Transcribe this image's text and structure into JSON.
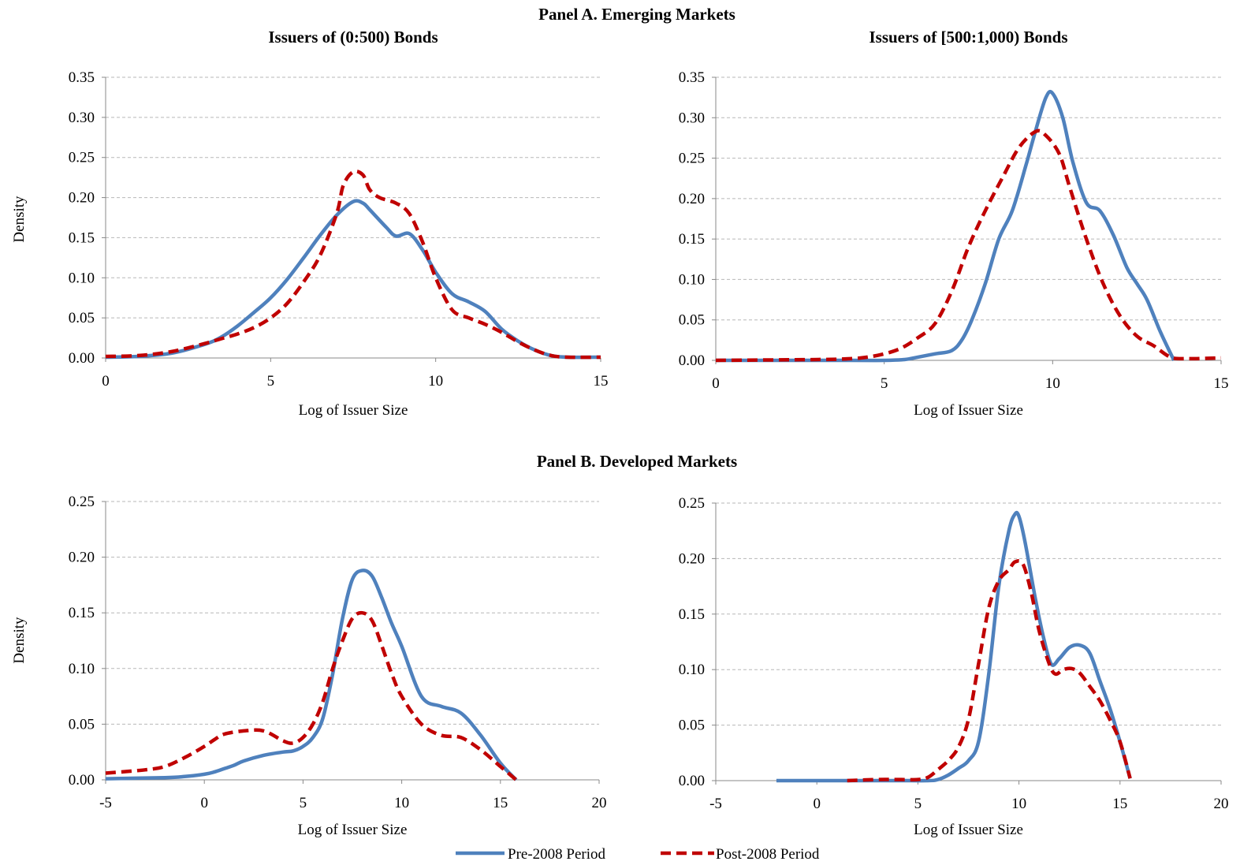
{
  "panels": {
    "a_title": "Panel A. Emerging Markets",
    "b_title": "Panel B. Developed Markets"
  },
  "legend": {
    "pre": "Pre-2008 Period",
    "post": "Post-2008 Period",
    "pre_color": "#4f81bd",
    "post_color": "#c00000"
  },
  "chart_data": [
    {
      "id": "a1",
      "type": "line",
      "title": "Issuers of (0:500) Bonds",
      "xlabel": "Log of Issuer Size",
      "ylabel": "Density",
      "xlim": [
        0,
        15
      ],
      "ylim": [
        0,
        0.35
      ],
      "xticks": [
        "0",
        "5",
        "10",
        "15"
      ],
      "yticks": [
        "0.00",
        "0.05",
        "0.10",
        "0.15",
        "0.20",
        "0.25",
        "0.30",
        "0.35"
      ],
      "grid": true,
      "series": [
        {
          "name": "Pre-2008 Period",
          "color": "#4f81bd",
          "dash": false,
          "x": [
            0,
            1,
            2,
            3,
            3.5,
            4,
            4.5,
            5,
            5.5,
            6,
            6.5,
            7,
            7.5,
            7.8,
            8,
            8.5,
            8.8,
            9.2,
            9.6,
            10,
            10.5,
            11,
            11.5,
            12,
            12.5,
            13,
            13.5,
            14,
            15
          ],
          "y": [
            0.001,
            0.002,
            0.006,
            0.017,
            0.026,
            0.04,
            0.057,
            0.075,
            0.098,
            0.125,
            0.153,
            0.178,
            0.195,
            0.193,
            0.185,
            0.163,
            0.152,
            0.155,
            0.135,
            0.107,
            0.08,
            0.07,
            0.058,
            0.036,
            0.021,
            0.01,
            0.003,
            0.001,
            0.001
          ]
        },
        {
          "name": "Post-2008 Period",
          "color": "#c00000",
          "dash": true,
          "x": [
            0,
            1,
            2,
            3,
            3.5,
            4,
            4.5,
            5,
            5.5,
            6,
            6.5,
            7,
            7.2,
            7.5,
            7.8,
            8,
            8.3,
            8.8,
            9.2,
            9.6,
            10,
            10.5,
            11,
            11.5,
            12,
            12.5,
            13,
            13.5,
            14,
            15
          ],
          "y": [
            0.002,
            0.003,
            0.008,
            0.018,
            0.024,
            0.03,
            0.038,
            0.05,
            0.068,
            0.095,
            0.128,
            0.18,
            0.215,
            0.232,
            0.228,
            0.21,
            0.2,
            0.193,
            0.18,
            0.145,
            0.1,
            0.06,
            0.05,
            0.042,
            0.032,
            0.02,
            0.01,
            0.003,
            0.001,
            0.001
          ]
        }
      ]
    },
    {
      "id": "a2",
      "type": "line",
      "title": "Issuers of [500:1,000) Bonds",
      "xlabel": "Log of Issuer Size",
      "ylabel": "",
      "xlim": [
        0,
        15
      ],
      "ylim": [
        0,
        0.35
      ],
      "xticks": [
        "0",
        "5",
        "10",
        "15"
      ],
      "yticks": [
        "0.00",
        "0.05",
        "0.10",
        "0.15",
        "0.20",
        "0.25",
        "0.30",
        "0.35"
      ],
      "grid": true,
      "series": [
        {
          "name": "Pre-2008 Period",
          "color": "#4f81bd",
          "dash": false,
          "x": [
            0,
            4,
            5,
            5.6,
            6,
            6.5,
            7,
            7.3,
            7.6,
            8,
            8.4,
            8.8,
            9.2,
            9.5,
            9.8,
            10,
            10.3,
            10.6,
            11,
            11.4,
            11.8,
            12.2,
            12.5,
            12.8,
            13.2,
            13.6
          ],
          "y": [
            0,
            0,
            0,
            0.001,
            0.004,
            0.008,
            0.012,
            0.025,
            0.05,
            0.095,
            0.15,
            0.185,
            0.24,
            0.285,
            0.325,
            0.33,
            0.3,
            0.245,
            0.195,
            0.185,
            0.155,
            0.115,
            0.095,
            0.075,
            0.035,
            0
          ]
        },
        {
          "name": "Post-2008 Period",
          "color": "#c00000",
          "dash": true,
          "x": [
            0,
            3,
            4,
            4.5,
            5,
            5.5,
            6,
            6.5,
            7,
            7.5,
            8,
            8.5,
            9,
            9.5,
            9.8,
            10.2,
            10.5,
            11,
            11.5,
            12,
            12.5,
            13,
            13.5,
            14,
            15
          ],
          "y": [
            0,
            0.001,
            0.002,
            0.004,
            0.008,
            0.015,
            0.028,
            0.045,
            0.085,
            0.14,
            0.185,
            0.225,
            0.263,
            0.283,
            0.278,
            0.255,
            0.215,
            0.15,
            0.095,
            0.055,
            0.03,
            0.018,
            0.004,
            0.002,
            0.003
          ]
        }
      ]
    },
    {
      "id": "b1",
      "type": "line",
      "title": "",
      "xlabel": "Log of Issuer Size",
      "ylabel": "Density",
      "xlim": [
        -5,
        20
      ],
      "ylim": [
        0,
        0.25
      ],
      "xticks": [
        "-5",
        "0",
        "5",
        "10",
        "15",
        "20"
      ],
      "yticks": [
        "0.00",
        "0.05",
        "0.10",
        "0.15",
        "0.20",
        "0.25"
      ],
      "grid": true,
      "series": [
        {
          "name": "Pre-2008 Period",
          "color": "#4f81bd",
          "dash": false,
          "x": [
            -5,
            -2,
            -1,
            0,
            0.5,
            1,
            1.5,
            2,
            3,
            4,
            4.5,
            5,
            5.5,
            6,
            6.5,
            7,
            7.5,
            8,
            8.5,
            9,
            9.5,
            10,
            11,
            12,
            13,
            14,
            15,
            15.8
          ],
          "y": [
            0.001,
            0.002,
            0.003,
            0.005,
            0.007,
            0.01,
            0.013,
            0.017,
            0.022,
            0.025,
            0.026,
            0.03,
            0.038,
            0.055,
            0.095,
            0.145,
            0.18,
            0.188,
            0.183,
            0.163,
            0.14,
            0.12,
            0.075,
            0.066,
            0.06,
            0.04,
            0.015,
            0
          ]
        },
        {
          "name": "Post-2008 Period",
          "color": "#c00000",
          "dash": true,
          "x": [
            -5,
            -3,
            -2,
            -1,
            0,
            0.5,
            1,
            2,
            3,
            4,
            4.5,
            5,
            5.5,
            6,
            6.5,
            7,
            7.5,
            8,
            8.5,
            9,
            9.5,
            10,
            11,
            12,
            13,
            14,
            15,
            15.8
          ],
          "y": [
            0.006,
            0.009,
            0.012,
            0.02,
            0.03,
            0.036,
            0.041,
            0.044,
            0.044,
            0.035,
            0.033,
            0.038,
            0.05,
            0.07,
            0.1,
            0.125,
            0.145,
            0.15,
            0.143,
            0.12,
            0.095,
            0.075,
            0.05,
            0.04,
            0.038,
            0.027,
            0.012,
            0
          ]
        }
      ]
    },
    {
      "id": "b2",
      "type": "line",
      "title": "",
      "xlabel": "Log of Issuer Size",
      "ylabel": "",
      "xlim": [
        -5,
        20
      ],
      "ylim": [
        0,
        0.25
      ],
      "xticks": [
        "-5",
        "0",
        "5",
        "10",
        "15",
        "20"
      ],
      "yticks": [
        "0.00",
        "0.05",
        "0.10",
        "0.15",
        "0.20",
        "0.25"
      ],
      "grid": true,
      "series": [
        {
          "name": "Pre-2008 Period",
          "color": "#4f81bd",
          "dash": false,
          "x": [
            -2,
            0,
            2,
            4,
            5.5,
            6,
            6.5,
            7,
            7.5,
            8,
            8.5,
            9,
            9.5,
            9.8,
            10,
            10.3,
            10.8,
            11.2,
            11.6,
            12,
            12.5,
            13,
            13.5,
            14,
            14.5,
            15,
            15.5
          ],
          "y": [
            0,
            0,
            0,
            0,
            0,
            0.001,
            0.005,
            0.011,
            0.018,
            0.035,
            0.095,
            0.175,
            0.225,
            0.24,
            0.238,
            0.215,
            0.165,
            0.13,
            0.105,
            0.11,
            0.12,
            0.122,
            0.115,
            0.09,
            0.065,
            0.035,
            0.002
          ]
        },
        {
          "name": "Post-2008 Period",
          "color": "#c00000",
          "dash": true,
          "x": [
            1.5,
            3,
            4,
            5,
            5.5,
            6,
            6.5,
            7,
            7.5,
            8,
            8.5,
            9,
            9.5,
            9.8,
            10.2,
            10.6,
            11,
            11.5,
            11.8,
            12.2,
            12.6,
            13,
            13.5,
            14,
            14.5,
            15,
            15.5
          ],
          "y": [
            0,
            0.001,
            0.001,
            0.001,
            0.003,
            0.01,
            0.018,
            0.03,
            0.055,
            0.105,
            0.155,
            0.18,
            0.19,
            0.197,
            0.195,
            0.17,
            0.135,
            0.105,
            0.096,
            0.1,
            0.101,
            0.097,
            0.085,
            0.072,
            0.055,
            0.035,
            0.002
          ]
        }
      ]
    }
  ]
}
